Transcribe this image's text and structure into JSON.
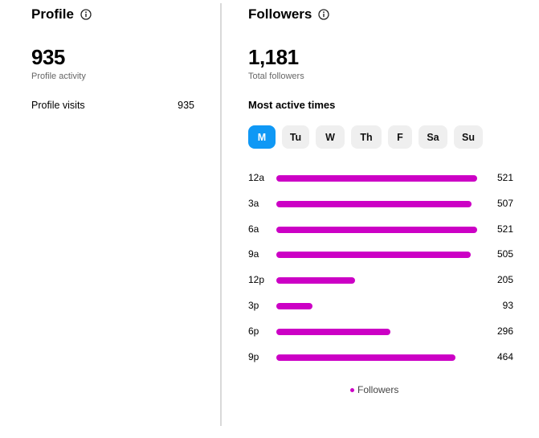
{
  "profile": {
    "title": "Profile",
    "value": "935",
    "sub_label": "Profile activity",
    "rows": [
      {
        "label": "Profile visits",
        "value": "935"
      }
    ]
  },
  "followers": {
    "title": "Followers",
    "value": "1,181",
    "sub_label": "Total followers",
    "most_active_title": "Most active times",
    "days": [
      "M",
      "Tu",
      "W",
      "Th",
      "F",
      "Sa",
      "Su"
    ],
    "selected_day": "M",
    "legend": "Followers"
  },
  "colors": {
    "bar": "#cc00c5",
    "active_tab": "#0f98f5"
  },
  "chart_data": {
    "type": "bar",
    "orientation": "horizontal",
    "categories": [
      "12a",
      "3a",
      "6a",
      "9a",
      "12p",
      "3p",
      "6p",
      "9p"
    ],
    "series": [
      {
        "name": "Followers",
        "values": [
          521,
          507,
          521,
          505,
          205,
          93,
          296,
          464
        ]
      }
    ],
    "xlim": [
      0,
      521
    ],
    "legend_position": "bottom"
  }
}
